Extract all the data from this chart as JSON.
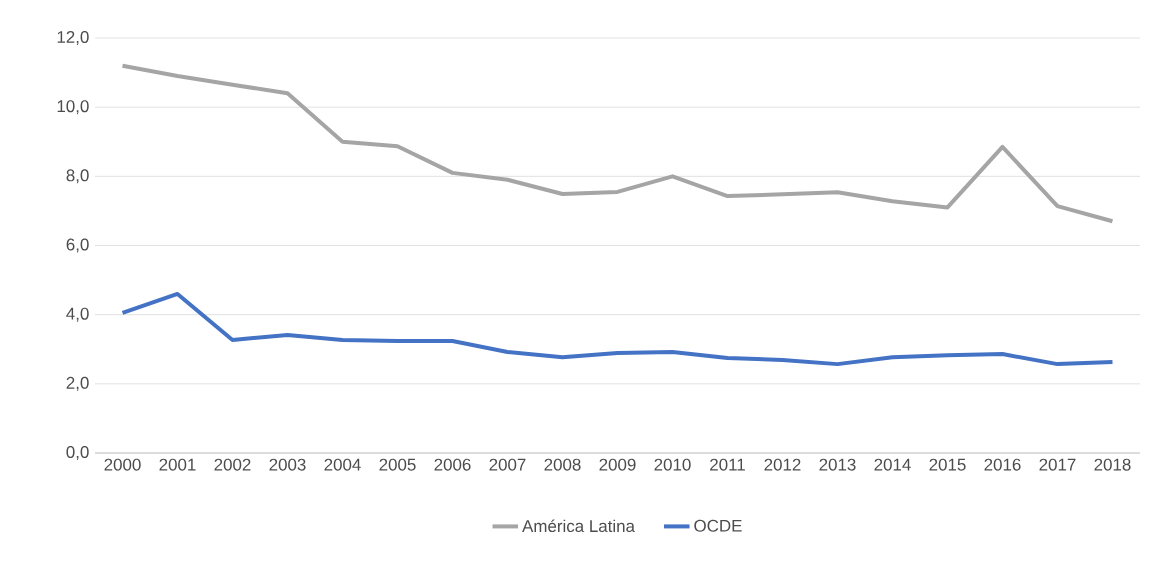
{
  "chart_data": {
    "type": "line",
    "categories": [
      "2000",
      "2001",
      "2002",
      "2003",
      "2004",
      "2005",
      "2006",
      "2007",
      "2008",
      "2009",
      "2010",
      "2011",
      "2012",
      "2013",
      "2014",
      "2015",
      "2016",
      "2017",
      "2018"
    ],
    "series": [
      {
        "name": "América Latina",
        "color": "#a5a5a5",
        "values": [
          11.2,
          10.9,
          10.65,
          10.4,
          9.0,
          8.87,
          8.1,
          7.9,
          7.49,
          7.55,
          8.0,
          7.43,
          7.48,
          7.54,
          7.28,
          7.1,
          8.85,
          7.14,
          6.7
        ]
      },
      {
        "name": "OCDE",
        "color": "#4472c4",
        "values": [
          4.05,
          4.6,
          3.27,
          3.41,
          3.27,
          3.24,
          3.24,
          2.92,
          2.77,
          2.89,
          2.92,
          2.75,
          2.69,
          2.57,
          2.77,
          2.83,
          2.86,
          2.57,
          2.63
        ]
      }
    ],
    "ylim": [
      0,
      12
    ],
    "yticks": [
      {
        "value": 0,
        "label": "0,0"
      },
      {
        "value": 2,
        "label": "2,0"
      },
      {
        "value": 4,
        "label": "4,0"
      },
      {
        "value": 6,
        "label": "6,0"
      },
      {
        "value": 8,
        "label": "8,0"
      },
      {
        "value": 10,
        "label": "10,0"
      },
      {
        "value": 12,
        "label": "12,0"
      }
    ],
    "grid": "y",
    "legend": "bottom"
  }
}
